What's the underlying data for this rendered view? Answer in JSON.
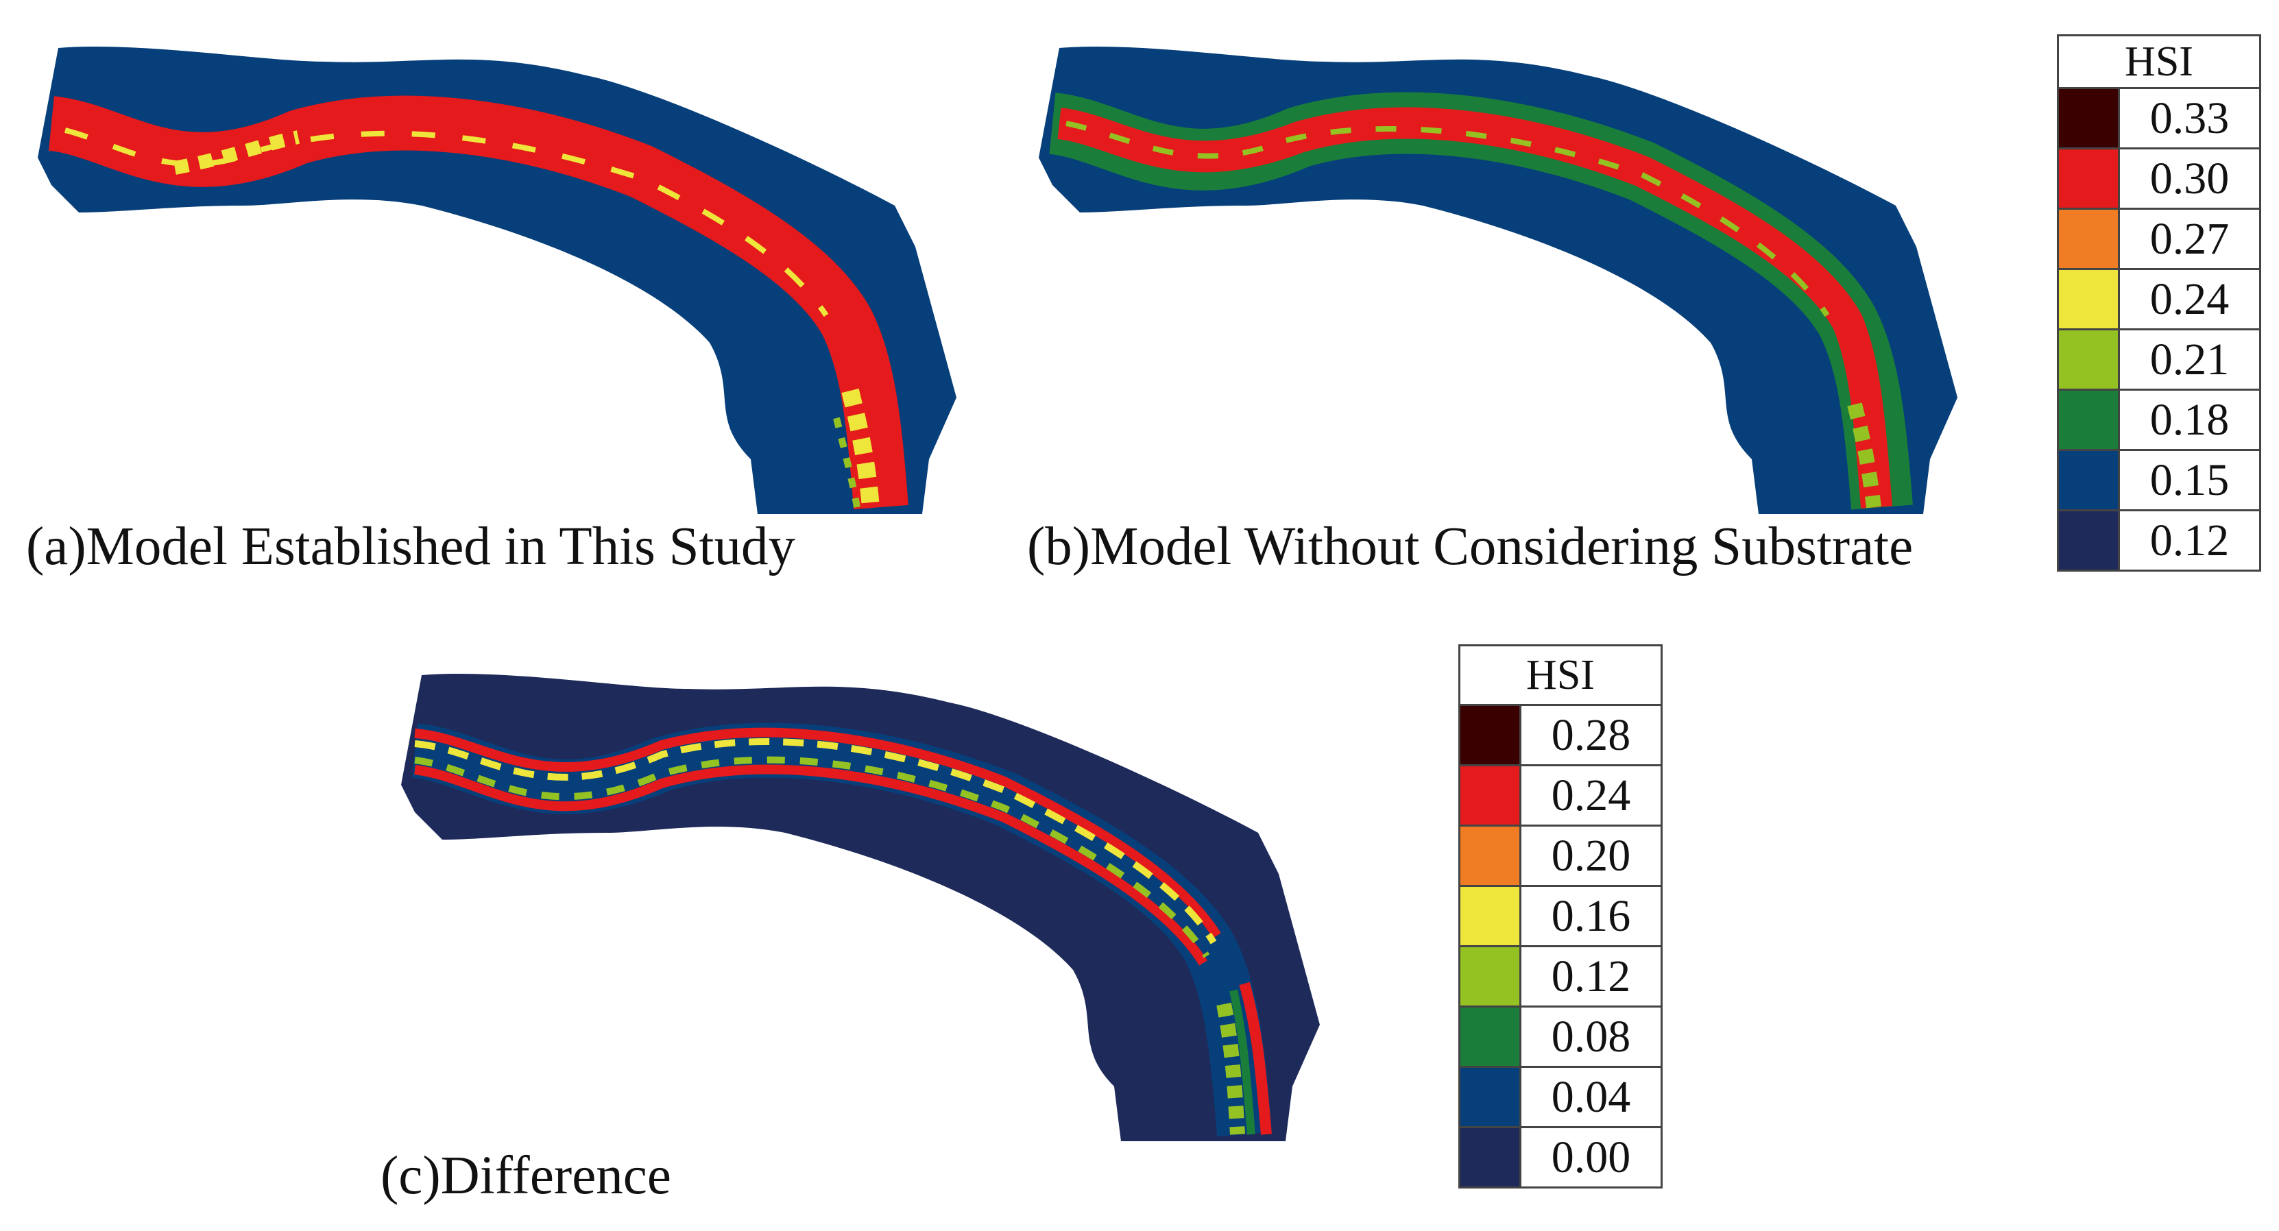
{
  "panels": [
    {
      "id": "a",
      "caption": "(a)Model Established in This Study"
    },
    {
      "id": "b",
      "caption": "(b)Model Without Considering Substrate"
    },
    {
      "id": "c",
      "caption": "(c)Difference"
    }
  ],
  "legend_top": {
    "title": "HSI",
    "items": [
      {
        "value": "0.33",
        "color": "#3a0000"
      },
      {
        "value": "0.30",
        "color": "#e41a1c"
      },
      {
        "value": "0.27",
        "color": "#f07d24"
      },
      {
        "value": "0.24",
        "color": "#eee63a"
      },
      {
        "value": "0.21",
        "color": "#95c223"
      },
      {
        "value": "0.18",
        "color": "#1a7e3a"
      },
      {
        "value": "0.15",
        "color": "#063f7a"
      },
      {
        "value": "0.12",
        "color": "#1e2a5a"
      }
    ]
  },
  "legend_bottom": {
    "title": "HSI",
    "items": [
      {
        "value": "0.28",
        "color": "#3a0000"
      },
      {
        "value": "0.24",
        "color": "#e41a1c"
      },
      {
        "value": "0.20",
        "color": "#f07d24"
      },
      {
        "value": "0.16",
        "color": "#eee63a"
      },
      {
        "value": "0.12",
        "color": "#95c223"
      },
      {
        "value": "0.08",
        "color": "#1a7e3a"
      },
      {
        "value": "0.04",
        "color": "#063f7a"
      },
      {
        "value": "0.00",
        "color": "#1e2a5a"
      }
    ]
  }
}
